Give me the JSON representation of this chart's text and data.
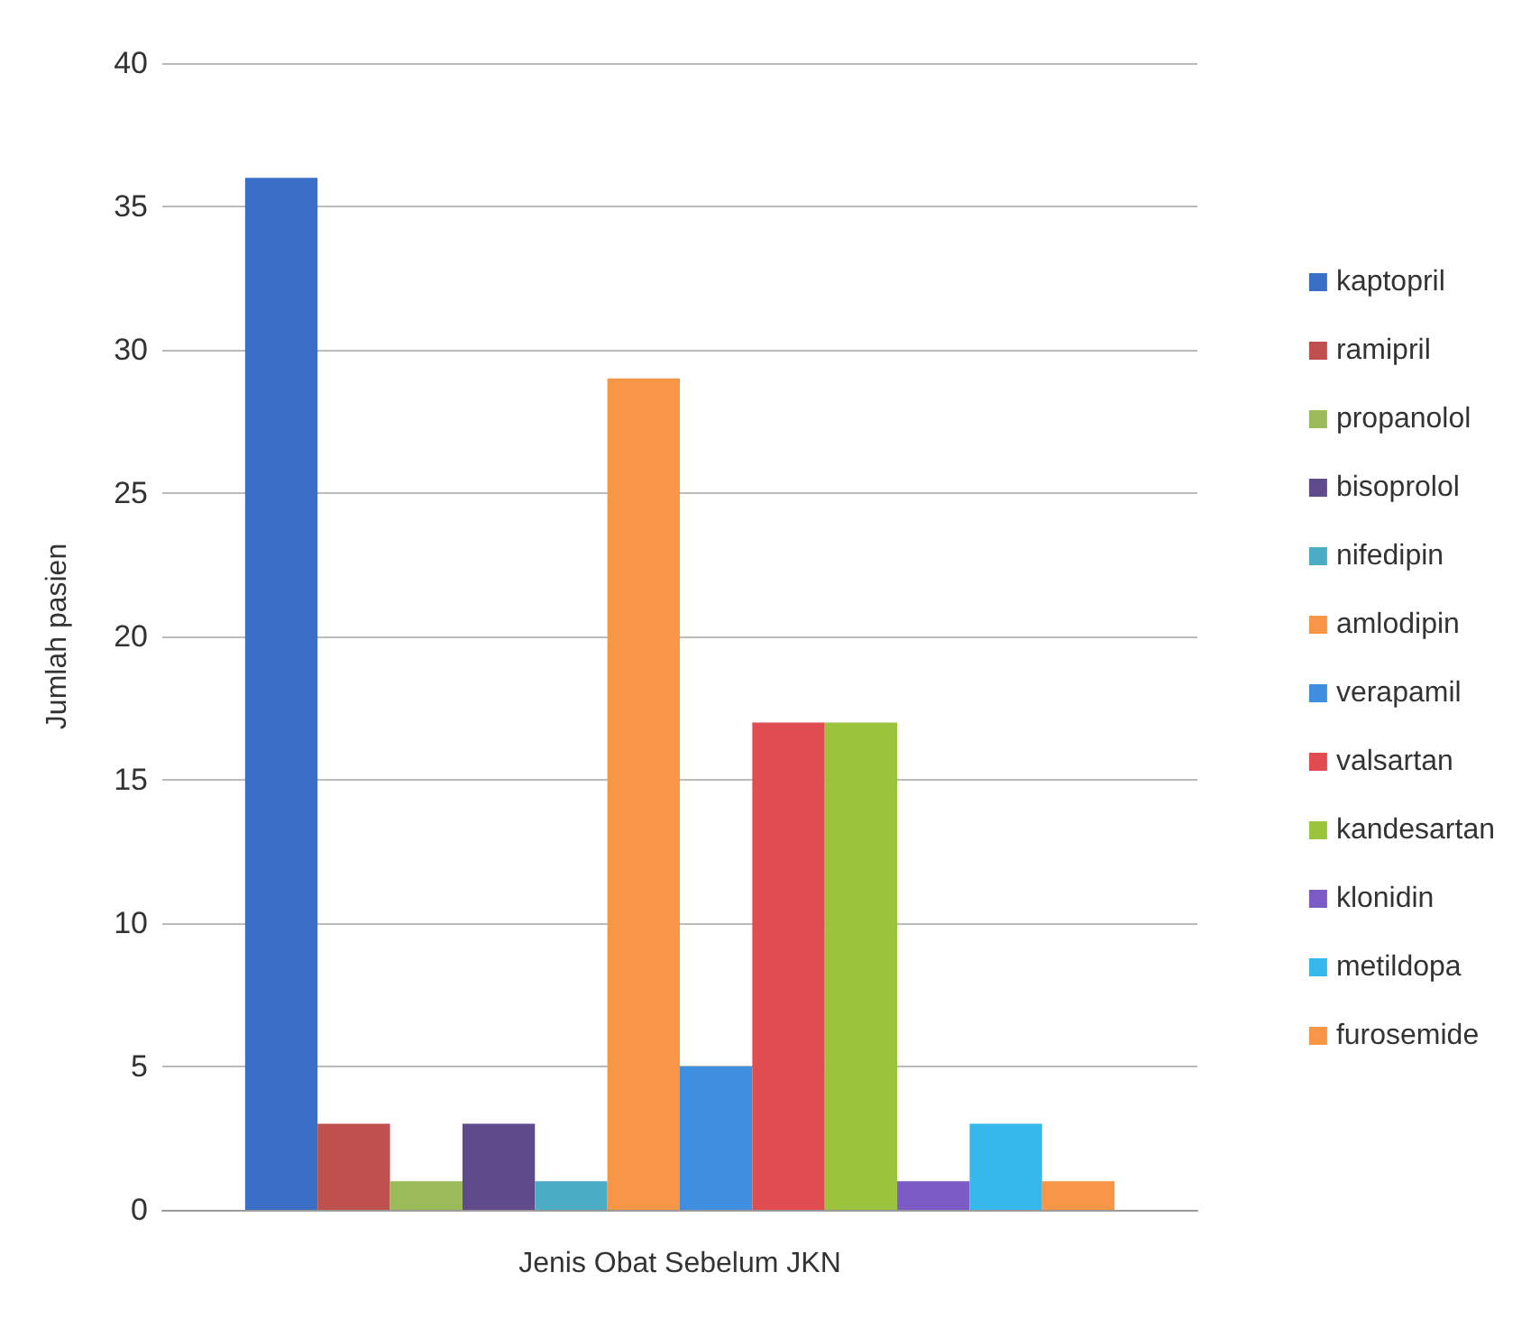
{
  "chart_data": {
    "type": "bar",
    "xlabel": "Jenis Obat Sebelum JKN",
    "ylabel": "Jumlah pasien",
    "categories": [
      null
    ],
    "series": [
      {
        "name": "kaptopril",
        "color": "#3b6fc6",
        "values": [
          36
        ]
      },
      {
        "name": "ramipril",
        "color": "#c0504d",
        "values": [
          3
        ]
      },
      {
        "name": "propanolol",
        "color": "#9bbb59",
        "values": [
          1
        ]
      },
      {
        "name": "bisoprolol",
        "color": "#5f4b8b",
        "values": [
          3
        ]
      },
      {
        "name": "nifedipin",
        "color": "#4bacc6",
        "values": [
          1
        ]
      },
      {
        "name": "amlodipin",
        "color": "#f79646",
        "values": [
          29
        ]
      },
      {
        "name": "verapamil",
        "color": "#3f8fe0",
        "values": [
          5
        ]
      },
      {
        "name": "valsartan",
        "color": "#e04c50",
        "values": [
          17
        ]
      },
      {
        "name": "kandesartan",
        "color": "#9bc43c",
        "values": [
          17
        ]
      },
      {
        "name": "klonidin",
        "color": "#7b5cc6",
        "values": [
          1
        ]
      },
      {
        "name": "metildopa",
        "color": "#36b8ec",
        "values": [
          3
        ]
      },
      {
        "name": "furosemide",
        "color": "#f79646",
        "values": [
          1
        ]
      }
    ],
    "ylim": [
      0,
      40
    ],
    "yticks": [
      0,
      5,
      10,
      15,
      20,
      25,
      30,
      35,
      40
    ],
    "grid": "y",
    "legend": "right"
  }
}
